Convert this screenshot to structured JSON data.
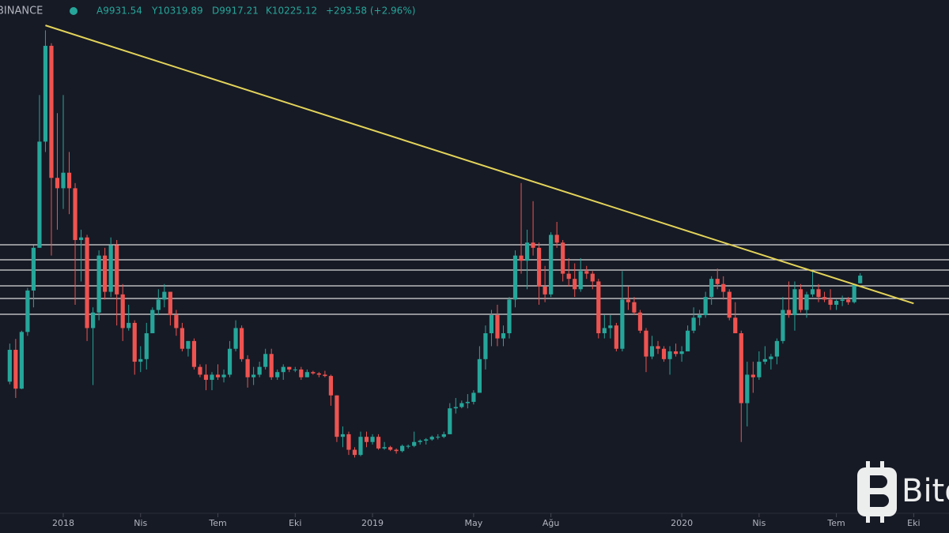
{
  "header": {
    "exchange": "BINANCE",
    "open": "A9931.54",
    "high": "Y10319.89",
    "low": "D9917.21",
    "close": "K10225.12",
    "change": "+293.58 (+2.96%)"
  },
  "watermark": "Bito",
  "chart_data": {
    "type": "candlestick",
    "up_color": "#26a69a",
    "down_color": "#ef5350",
    "ylim": [
      1200,
      20870
    ],
    "xticks": [
      {
        "value": 9,
        "label": "2018"
      },
      {
        "value": 22,
        "label": "Nis"
      },
      {
        "value": 35,
        "label": "Tem"
      },
      {
        "value": 48,
        "label": "Eki"
      },
      {
        "value": 61,
        "label": "2019"
      },
      {
        "value": 78,
        "label": "May"
      },
      {
        "value": 91,
        "label": "Ağu"
      },
      {
        "value": 113,
        "label": "2020"
      },
      {
        "value": 126,
        "label": "Nis"
      },
      {
        "value": 139,
        "label": "Tem"
      },
      {
        "value": 152,
        "label": "Eki"
      }
    ],
    "levels": [
      11416,
      10837,
      10440,
      9830,
      9343,
      8733
    ],
    "level_color": "#d9d9d9",
    "trendline": [
      [
        6,
        19890
      ],
      [
        152,
        9150
      ]
    ],
    "trendline_color": "#e3d35a",
    "candles": [
      [
        6130,
        7600,
        6030,
        7360
      ],
      [
        7360,
        7780,
        5500,
        5860
      ],
      [
        5860,
        8100,
        5840,
        8050
      ],
      [
        8050,
        9750,
        7900,
        9650
      ],
      [
        9650,
        11400,
        9000,
        11300
      ],
      [
        11300,
        17200,
        11300,
        15400
      ],
      [
        15400,
        19700,
        15000,
        19100
      ],
      [
        19100,
        19200,
        11000,
        14000
      ],
      [
        14000,
        16500,
        12000,
        13600
      ],
      [
        13600,
        17200,
        12800,
        14200
      ],
      [
        14200,
        15000,
        12600,
        13600
      ],
      [
        13600,
        13800,
        9100,
        11600
      ],
      [
        11600,
        12000,
        10000,
        11700
      ],
      [
        11700,
        11800,
        7700,
        8200
      ],
      [
        8200,
        9000,
        6000,
        8800
      ],
      [
        8800,
        11200,
        8500,
        11000
      ],
      [
        11000,
        11300,
        9300,
        9600
      ],
      [
        9600,
        11700,
        9400,
        11400
      ],
      [
        11400,
        11600,
        8300,
        9500
      ],
      [
        9500,
        9900,
        7700,
        8200
      ],
      [
        8200,
        9100,
        8100,
        8400
      ],
      [
        8400,
        8500,
        6400,
        6900
      ],
      [
        6900,
        7500,
        6500,
        7000
      ],
      [
        7000,
        8400,
        6600,
        8000
      ],
      [
        8000,
        9000,
        8000,
        8900
      ],
      [
        8900,
        9700,
        8700,
        9300
      ],
      [
        9300,
        9900,
        9000,
        9600
      ],
      [
        9600,
        9600,
        8300,
        8700
      ],
      [
        8700,
        8900,
        7900,
        8200
      ],
      [
        8200,
        8400,
        7300,
        7400
      ],
      [
        7400,
        7700,
        7100,
        7700
      ],
      [
        7700,
        7800,
        6600,
        6700
      ],
      [
        6700,
        6800,
        6300,
        6400
      ],
      [
        6400,
        6800,
        5800,
        6200
      ],
      [
        6200,
        6500,
        5800,
        6400
      ],
      [
        6400,
        6800,
        6200,
        6300
      ],
      [
        6300,
        6600,
        6100,
        6400
      ],
      [
        6400,
        7700,
        6300,
        7400
      ],
      [
        7400,
        8500,
        7300,
        8200
      ],
      [
        8200,
        8300,
        6900,
        7000
      ],
      [
        7000,
        7150,
        5900,
        6300
      ],
      [
        6300,
        6700,
        6000,
        6400
      ],
      [
        6400,
        6900,
        6300,
        6700
      ],
      [
        6700,
        7400,
        6600,
        7200
      ],
      [
        7200,
        7400,
        6200,
        6300
      ],
      [
        6300,
        6600,
        6200,
        6500
      ],
      [
        6500,
        6800,
        6200,
        6700
      ],
      [
        6700,
        6700,
        6500,
        6600
      ],
      [
        6600,
        6700,
        6500,
        6600
      ],
      [
        6600,
        6700,
        6200,
        6300
      ],
      [
        6300,
        6600,
        6300,
        6500
      ],
      [
        6500,
        6550,
        6400,
        6450
      ],
      [
        6450,
        6500,
        6300,
        6400
      ],
      [
        6400,
        6550,
        6300,
        6350
      ],
      [
        6350,
        6400,
        5200,
        5600
      ],
      [
        5600,
        5600,
        3800,
        4000
      ],
      [
        4000,
        4400,
        3600,
        4100
      ],
      [
        4100,
        4200,
        3300,
        3500
      ],
      [
        3500,
        3600,
        3200,
        3300
      ],
      [
        3300,
        4200,
        3250,
        4000
      ],
      [
        4000,
        4200,
        3600,
        3800
      ],
      [
        3800,
        4100,
        3700,
        4000
      ],
      [
        4000,
        4100,
        3500,
        3550
      ],
      [
        3550,
        3800,
        3500,
        3600
      ],
      [
        3600,
        3650,
        3450,
        3500
      ],
      [
        3500,
        3550,
        3350,
        3450
      ],
      [
        3450,
        3700,
        3400,
        3650
      ],
      [
        3650,
        3700,
        3550,
        3650
      ],
      [
        3650,
        4200,
        3600,
        3800
      ],
      [
        3800,
        3900,
        3700,
        3850
      ],
      [
        3850,
        3950,
        3700,
        3900
      ],
      [
        3900,
        4050,
        3850,
        4000
      ],
      [
        4000,
        4100,
        3900,
        4000
      ],
      [
        4000,
        4200,
        3950,
        4100
      ],
      [
        4100,
        5300,
        4100,
        5100
      ],
      [
        5100,
        5500,
        4900,
        5150
      ],
      [
        5150,
        5400,
        5100,
        5300
      ],
      [
        5300,
        5650,
        5100,
        5350
      ],
      [
        5350,
        5800,
        5250,
        5700
      ],
      [
        5700,
        7500,
        5700,
        7000
      ],
      [
        7000,
        8300,
        6600,
        8000
      ],
      [
        8000,
        8900,
        7500,
        8700
      ],
      [
        8700,
        9100,
        7500,
        7800
      ],
      [
        7800,
        8300,
        7500,
        8000
      ],
      [
        8000,
        9400,
        7800,
        9300
      ],
      [
        9300,
        11200,
        9000,
        11000
      ],
      [
        11000,
        13800,
        10300,
        10800
      ],
      [
        10800,
        12000,
        9700,
        11500
      ],
      [
        11500,
        13100,
        11000,
        11300
      ],
      [
        11300,
        11500,
        9100,
        9800
      ],
      [
        9800,
        10600,
        9200,
        9500
      ],
      [
        9500,
        11900,
        9400,
        11800
      ],
      [
        11800,
        12300,
        11300,
        11500
      ],
      [
        11500,
        11600,
        10000,
        10300
      ],
      [
        10300,
        10900,
        9800,
        10100
      ],
      [
        10100,
        10700,
        9400,
        9700
      ],
      [
        9700,
        10900,
        9600,
        10400
      ],
      [
        10400,
        10600,
        10100,
        10300
      ],
      [
        10300,
        10400,
        9700,
        10000
      ],
      [
        10000,
        10100,
        7800,
        8000
      ],
      [
        8000,
        8700,
        7800,
        8200
      ],
      [
        8200,
        8700,
        7800,
        8300
      ],
      [
        8300,
        8400,
        7300,
        7400
      ],
      [
        7400,
        10400,
        7300,
        9300
      ],
      [
        9300,
        9800,
        8900,
        9200
      ],
      [
        9200,
        9400,
        8700,
        8800
      ],
      [
        8800,
        8900,
        8000,
        8100
      ],
      [
        8100,
        8200,
        6500,
        7100
      ],
      [
        7100,
        7900,
        7000,
        7500
      ],
      [
        7500,
        7700,
        7200,
        7400
      ],
      [
        7400,
        7500,
        6900,
        7000
      ],
      [
        7000,
        7500,
        6400,
        7300
      ],
      [
        7300,
        7600,
        7100,
        7200
      ],
      [
        7200,
        7500,
        6900,
        7300
      ],
      [
        7300,
        8300,
        7300,
        8100
      ],
      [
        8100,
        9000,
        8000,
        8600
      ],
      [
        8600,
        8900,
        8300,
        8700
      ],
      [
        8700,
        9600,
        8600,
        9400
      ],
      [
        9400,
        10200,
        9100,
        10100
      ],
      [
        10100,
        10500,
        9700,
        9900
      ],
      [
        9900,
        10200,
        9300,
        9600
      ],
      [
        9600,
        9700,
        8500,
        8600
      ],
      [
        8600,
        9200,
        8000,
        8000
      ],
      [
        8000,
        8100,
        3800,
        5300
      ],
      [
        5300,
        6900,
        4400,
        6400
      ],
      [
        6400,
        6900,
        5700,
        6300
      ],
      [
        6300,
        7300,
        6200,
        6900
      ],
      [
        6900,
        7500,
        6800,
        7000
      ],
      [
        7000,
        7200,
        6600,
        7100
      ],
      [
        7100,
        7800,
        6800,
        7700
      ],
      [
        7700,
        9400,
        7600,
        8900
      ],
      [
        8900,
        10000,
        8600,
        8700
      ],
      [
        8700,
        10000,
        8100,
        9700
      ],
      [
        9700,
        9900,
        8800,
        8900
      ],
      [
        8900,
        9600,
        8600,
        9500
      ],
      [
        9500,
        10400,
        9400,
        9700
      ],
      [
        9700,
        9900,
        9200,
        9400
      ],
      [
        9400,
        9600,
        9200,
        9300
      ],
      [
        9300,
        9700,
        8900,
        9100
      ],
      [
        9100,
        9300,
        8900,
        9250
      ],
      [
        9250,
        9450,
        9050,
        9300
      ],
      [
        9300,
        9400,
        9100,
        9200
      ],
      [
        9200,
        9900,
        9150,
        9900
      ],
      [
        9930,
        10320,
        9920,
        10225
      ]
    ]
  }
}
